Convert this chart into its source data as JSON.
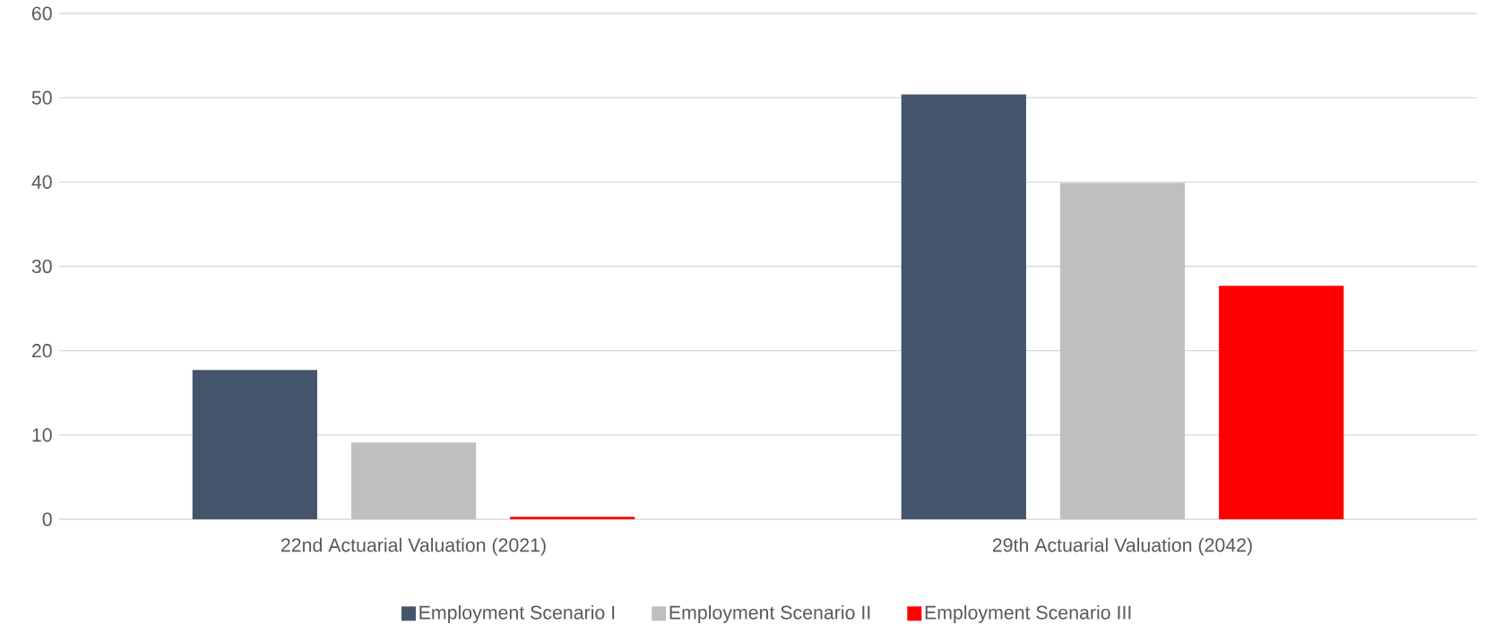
{
  "chart_data": {
    "type": "bar",
    "categories": [
      "22nd Actuarial Valuation (2021)",
      "29th Actuarial Valuation (2042)"
    ],
    "series": [
      {
        "name": "Employment Scenario I",
        "color": "#44546a",
        "values": [
          17.7,
          50.4
        ]
      },
      {
        "name": "Employment Scenario II",
        "color": "#bfbfbf",
        "values": [
          9.1,
          39.9
        ]
      },
      {
        "name": "Employment Scenario III",
        "color": "#ff0000",
        "values": [
          0.3,
          27.7
        ]
      }
    ],
    "ylim": [
      0,
      60
    ],
    "yticks": [
      0,
      10,
      20,
      30,
      40,
      50,
      60
    ],
    "grid": "y",
    "legend": "bottom"
  }
}
